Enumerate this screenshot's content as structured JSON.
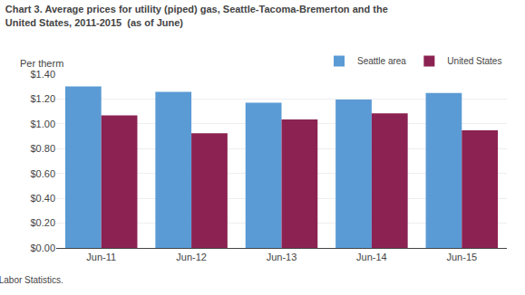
{
  "chart_data": {
    "type": "bar",
    "title": "Chart 3. Average prices for utility (piped) gas, Seattle-Tacoma-Bremerton and the\nUnited States, 2011-2015  (as of June)",
    "ylabel": "Per therm",
    "annotations": [
      "SOURCE: U.S. Bureau of Labor Statistics."
    ],
    "categories": [
      "Jun-11",
      "Jun-12",
      "Jun-13",
      "Jun-14",
      "Jun-15"
    ],
    "series": [
      {
        "name": "Seattle area",
        "color": "#5B9BD5",
        "values": [
          1.302,
          1.257,
          1.17,
          1.195,
          1.248
        ]
      },
      {
        "name": "United States",
        "color": "#8B2252",
        "values": [
          1.068,
          0.924,
          1.035,
          1.085,
          0.948
        ]
      }
    ],
    "ylim": [
      0.0,
      1.4
    ],
    "yticks": [
      {
        "value": 0.0,
        "label": "$0.00"
      },
      {
        "value": 0.2,
        "label": "$0.20"
      },
      {
        "value": 0.4,
        "label": "$0.40"
      },
      {
        "value": 0.6,
        "label": "$0.60"
      },
      {
        "value": 0.8,
        "label": "$0.80"
      },
      {
        "value": 1.0,
        "label": "$1.00"
      },
      {
        "value": 1.2,
        "label": "$1.20"
      },
      {
        "value": 1.4,
        "label": "$1.40"
      }
    ],
    "grid": true,
    "legend": "upper right"
  }
}
